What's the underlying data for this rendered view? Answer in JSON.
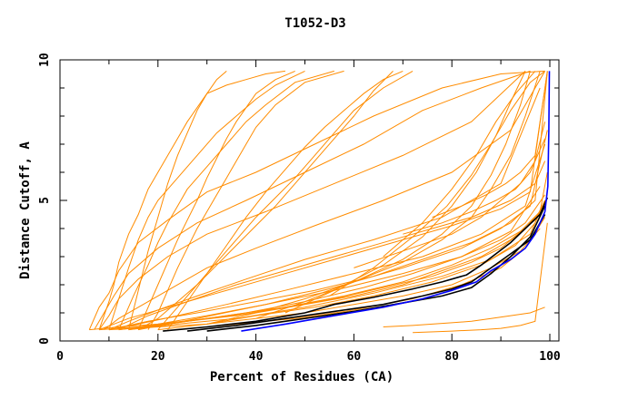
{
  "chart_data": {
    "type": "line",
    "title": "T1052-D3",
    "xlabel": "Percent of Residues (CA)",
    "ylabel": "Distance Cutoff, A",
    "xlim": [
      0,
      100
    ],
    "ylim": [
      0,
      10
    ],
    "x_ticks": [
      "0",
      "20",
      "40",
      "60",
      "80",
      "100"
    ],
    "y_ticks": [
      "0",
      "5",
      "10"
    ],
    "grid": false,
    "colors": {
      "models": "#ff8c00",
      "highlight_black": "#000000",
      "highlight_blue": "#0000ff"
    },
    "series": [
      {
        "color": "#ff8c00",
        "x": [
          6,
          8,
          10,
          12,
          16,
          22,
          30,
          40,
          52,
          64,
          78,
          90,
          99
        ],
        "y": [
          0.4,
          1.2,
          1.7,
          2.5,
          3.5,
          4.3,
          5.3,
          6.0,
          7.0,
          8.0,
          9.0,
          9.5,
          9.6
        ]
      },
      {
        "color": "#ff8c00",
        "x": [
          7,
          9,
          11,
          14,
          20,
          28,
          38,
          50,
          62,
          74,
          86,
          96
        ],
        "y": [
          0.4,
          1.0,
          1.6,
          2.4,
          3.3,
          4.2,
          5.0,
          6.0,
          7.0,
          8.2,
          9.0,
          9.6
        ]
      },
      {
        "color": "#ff8c00",
        "x": [
          8,
          10,
          12,
          16,
          22,
          30,
          42,
          56,
          70,
          84,
          95
        ],
        "y": [
          0.4,
          0.9,
          1.5,
          2.2,
          3.0,
          3.8,
          4.6,
          5.6,
          6.6,
          7.8,
          9.6
        ]
      },
      {
        "color": "#ff8c00",
        "x": [
          9,
          12,
          16,
          22,
          30,
          40,
          52,
          66,
          80,
          92,
          99
        ],
        "y": [
          0.4,
          0.8,
          1.2,
          1.8,
          2.6,
          3.3,
          4.1,
          5.0,
          6.0,
          7.5,
          9.6
        ]
      },
      {
        "color": "#ff8c00",
        "x": [
          10,
          14,
          20,
          28,
          38,
          50,
          64,
          78,
          90,
          98
        ],
        "y": [
          0.4,
          0.7,
          1.1,
          1.6,
          2.2,
          2.9,
          3.6,
          4.4,
          5.6,
          9.0
        ]
      },
      {
        "color": "#ff8c00",
        "x": [
          10,
          16,
          24,
          34,
          46,
          60,
          74,
          86,
          95,
          99
        ],
        "y": [
          0.4,
          0.6,
          0.9,
          1.3,
          1.8,
          2.4,
          3.0,
          3.8,
          4.8,
          7.0
        ]
      },
      {
        "color": "#ff8c00",
        "x": [
          12,
          20,
          30,
          42,
          56,
          70,
          82,
          92,
          98
        ],
        "y": [
          0.4,
          0.6,
          0.9,
          1.3,
          1.8,
          2.4,
          3.0,
          3.9,
          5.5
        ]
      },
      {
        "color": "#ff8c00",
        "x": [
          14,
          24,
          36,
          50,
          64,
          78,
          88,
          96,
          99
        ],
        "y": [
          0.4,
          0.6,
          0.8,
          1.2,
          1.7,
          2.3,
          2.9,
          3.8,
          5.0
        ]
      },
      {
        "color": "#ff8c00",
        "x": [
          8,
          10,
          11,
          12,
          14,
          16,
          18,
          20,
          22,
          24,
          26,
          28,
          30,
          34,
          38,
          42,
          46
        ],
        "y": [
          0.4,
          1.4,
          2.0,
          2.8,
          3.8,
          4.5,
          5.4,
          6.0,
          6.6,
          7.2,
          7.8,
          8.3,
          8.8,
          9.1,
          9.3,
          9.5,
          9.6
        ]
      },
      {
        "color": "#ff8c00",
        "x": [
          10,
          12,
          14,
          16,
          18,
          20,
          24,
          28,
          32,
          36,
          40,
          44,
          50
        ],
        "y": [
          0.4,
          1.5,
          2.6,
          3.6,
          4.4,
          5.0,
          5.8,
          6.6,
          7.4,
          8.0,
          8.6,
          9.1,
          9.6
        ]
      },
      {
        "color": "#ff8c00",
        "x": [
          12,
          15,
          18,
          20,
          22,
          24,
          26,
          30,
          34,
          38,
          42,
          48,
          56
        ],
        "y": [
          0.4,
          1.6,
          2.7,
          3.5,
          4.2,
          4.8,
          5.4,
          6.2,
          7.0,
          7.8,
          8.4,
          9.2,
          9.6
        ]
      },
      {
        "color": "#ff8c00",
        "x": [
          16,
          18,
          20,
          22,
          24,
          26,
          28,
          30,
          32,
          34,
          36,
          38,
          40,
          44,
          48
        ],
        "y": [
          0.4,
          1.2,
          2.0,
          2.8,
          3.6,
          4.3,
          5.0,
          5.8,
          6.5,
          7.2,
          7.8,
          8.3,
          8.8,
          9.3,
          9.6
        ]
      },
      {
        "color": "#ff8c00",
        "x": [
          18,
          20,
          22,
          24,
          26,
          28,
          30,
          32,
          34,
          36,
          38,
          40,
          44,
          50,
          58
        ],
        "y": [
          0.4,
          1.0,
          1.8,
          2.6,
          3.3,
          4.0,
          4.6,
          5.2,
          5.8,
          6.4,
          7.0,
          7.6,
          8.4,
          9.2,
          9.6
        ]
      },
      {
        "color": "#ff8c00",
        "x": [
          20,
          24,
          28,
          32,
          36,
          40,
          44,
          48,
          52,
          56,
          60,
          66,
          72
        ],
        "y": [
          0.4,
          1.2,
          2.0,
          2.8,
          3.6,
          4.4,
          5.1,
          5.8,
          6.6,
          7.4,
          8.2,
          9.0,
          9.6
        ]
      },
      {
        "color": "#ff8c00",
        "x": [
          22,
          26,
          30,
          34,
          38,
          42,
          46,
          50,
          54,
          58,
          62,
          66,
          70
        ],
        "y": [
          0.4,
          1.4,
          2.4,
          3.4,
          4.4,
          5.3,
          6.1,
          6.9,
          7.6,
          8.2,
          8.8,
          9.3,
          9.6
        ]
      },
      {
        "color": "#ff8c00",
        "x": [
          14,
          16,
          18,
          20,
          22,
          24,
          26,
          28,
          30,
          32,
          34
        ],
        "y": [
          0.4,
          1.8,
          3.2,
          4.4,
          5.6,
          6.6,
          7.4,
          8.2,
          8.8,
          9.3,
          9.6
        ]
      },
      {
        "color": "#ff8c00",
        "x": [
          16,
          20,
          24,
          28,
          32,
          36,
          40,
          44,
          48,
          52,
          56,
          60,
          64,
          68
        ],
        "y": [
          0.4,
          0.8,
          1.4,
          2.0,
          2.7,
          3.4,
          4.1,
          4.8,
          5.6,
          6.4,
          7.2,
          8.0,
          8.9,
          9.6
        ]
      },
      {
        "color": "#ff8c00",
        "x": [
          30,
          40,
          50,
          60,
          70,
          78,
          84,
          88,
          92,
          95,
          98
        ],
        "y": [
          0.6,
          1.0,
          1.5,
          2.1,
          2.8,
          3.6,
          4.4,
          5.4,
          6.6,
          8.0,
          9.6
        ]
      },
      {
        "color": "#ff8c00",
        "x": [
          40,
          50,
          60,
          70,
          78,
          84,
          88,
          91,
          94,
          96
        ],
        "y": [
          0.8,
          1.4,
          2.1,
          2.9,
          3.8,
          4.8,
          5.9,
          7.0,
          8.4,
          9.6
        ]
      },
      {
        "color": "#ff8c00",
        "x": [
          46,
          56,
          66,
          74,
          80,
          85,
          89,
          92,
          95
        ],
        "y": [
          1.0,
          1.8,
          2.7,
          3.7,
          4.8,
          6.0,
          7.3,
          8.5,
          9.6
        ]
      },
      {
        "color": "#ff8c00",
        "x": [
          55,
          64,
          72,
          79,
          84,
          88,
          92,
          96,
          99
        ],
        "y": [
          1.6,
          2.6,
          3.7,
          4.8,
          5.9,
          7.0,
          8.2,
          9.2,
          9.6
        ]
      },
      {
        "color": "#ff8c00",
        "x": [
          66,
          74,
          80,
          85,
          89,
          93,
          97
        ],
        "y": [
          3.0,
          4.2,
          5.4,
          6.6,
          7.8,
          8.8,
          9.6
        ]
      },
      {
        "color": "#ff8c00",
        "x": [
          6,
          12,
          20,
          30,
          40,
          50,
          60,
          70,
          78,
          86,
          92,
          97,
          99
        ],
        "y": [
          0.4,
          0.5,
          0.6,
          0.8,
          1.0,
          1.3,
          1.6,
          2.0,
          2.5,
          3.0,
          3.6,
          4.3,
          5.0
        ]
      },
      {
        "color": "#ff8c00",
        "x": [
          8,
          16,
          26,
          36,
          46,
          56,
          66,
          76,
          84,
          90,
          95,
          99
        ],
        "y": [
          0.4,
          0.5,
          0.7,
          0.9,
          1.2,
          1.5,
          1.9,
          2.3,
          2.8,
          3.3,
          4.0,
          4.8
        ]
      },
      {
        "color": "#ff8c00",
        "x": [
          10,
          20,
          30,
          40,
          50,
          60,
          70,
          80,
          88,
          94,
          98
        ],
        "y": [
          0.4,
          0.5,
          0.6,
          0.8,
          1.0,
          1.3,
          1.6,
          2.0,
          2.6,
          3.2,
          4.0
        ]
      },
      {
        "color": "#ff8c00",
        "x": [
          12,
          22,
          34,
          46,
          58,
          70,
          80,
          88,
          94,
          98,
          99.5
        ],
        "y": [
          0.4,
          0.6,
          0.9,
          1.2,
          1.6,
          2.1,
          2.7,
          3.3,
          3.9,
          4.6,
          6.0
        ]
      },
      {
        "color": "#ff8c00",
        "x": [
          14,
          26,
          38,
          50,
          62,
          72,
          82,
          90,
          95,
          99
        ],
        "y": [
          0.4,
          0.7,
          1.0,
          1.4,
          1.9,
          2.4,
          3.0,
          3.6,
          4.2,
          5.2
        ]
      },
      {
        "color": "#ff8c00",
        "x": [
          10,
          18,
          28,
          40,
          52,
          64,
          74,
          84,
          92,
          97,
          99.5
        ],
        "y": [
          0.4,
          0.7,
          1.0,
          1.4,
          1.8,
          2.3,
          2.9,
          3.5,
          4.2,
          5.0,
          9.6
        ]
      },
      {
        "color": "#ff8c00",
        "x": [
          20,
          30,
          40,
          52,
          64,
          76,
          86,
          93,
          97,
          99
        ],
        "y": [
          0.4,
          0.6,
          0.9,
          1.2,
          1.6,
          2.1,
          2.7,
          3.4,
          4.2,
          5.0
        ]
      },
      {
        "color": "#ff8c00",
        "x": [
          24,
          36,
          48,
          60,
          72,
          82,
          90,
          95,
          99
        ],
        "y": [
          0.4,
          0.6,
          0.8,
          1.1,
          1.5,
          2.0,
          2.6,
          3.3,
          4.4
        ]
      },
      {
        "color": "#ff8c00",
        "x": [
          16,
          28,
          42,
          56,
          70,
          82,
          90,
          96,
          99.5
        ],
        "y": [
          0.4,
          0.8,
          1.3,
          1.9,
          2.6,
          3.3,
          4.0,
          4.8,
          7.5
        ]
      },
      {
        "color": "#ff8c00",
        "x": [
          8,
          14,
          22,
          32,
          44,
          56,
          68,
          80,
          90,
          96,
          99.5
        ],
        "y": [
          0.4,
          0.8,
          1.2,
          1.7,
          2.3,
          2.9,
          3.5,
          4.1,
          4.7,
          5.3,
          9.6
        ]
      },
      {
        "color": "#ff8c00",
        "x": [
          12,
          18,
          26,
          36,
          48,
          60,
          72,
          84,
          92,
          97,
          99
        ],
        "y": [
          0.4,
          0.9,
          1.4,
          2.0,
          2.6,
          3.2,
          3.8,
          4.4,
          5.0,
          5.6,
          6.4
        ]
      },
      {
        "color": "#ff8c00",
        "x": [
          60,
          70,
          80,
          86,
          90,
          94,
          97,
          99
        ],
        "y": [
          2.6,
          3.2,
          3.8,
          4.4,
          5.0,
          5.6,
          6.4,
          7.8
        ]
      },
      {
        "color": "#ff8c00",
        "x": [
          70,
          78,
          84,
          89,
          93,
          96,
          99
        ],
        "y": [
          3.8,
          4.2,
          4.6,
          5.0,
          5.4,
          6.0,
          7.2
        ]
      },
      {
        "color": "#ff8c00",
        "x": [
          76,
          82,
          87,
          91,
          94,
          97,
          99.5
        ],
        "y": [
          4.4,
          4.8,
          5.2,
          5.6,
          6.0,
          6.6,
          9.6
        ]
      },
      {
        "color": "#ff8c00",
        "x": [
          66,
          72,
          76,
          80,
          84,
          88,
          92,
          96,
          99
        ],
        "y": [
          0.5,
          0.55,
          0.6,
          0.65,
          0.7,
          0.8,
          0.9,
          1.0,
          1.2
        ]
      },
      {
        "color": "#ff8c00",
        "x": [
          72,
          80,
          86,
          90,
          94,
          97,
          99.5
        ],
        "y": [
          0.3,
          0.35,
          0.4,
          0.45,
          0.55,
          0.7,
          4.2
        ]
      },
      {
        "color": "#000000",
        "x": [
          21,
          30,
          40,
          50,
          56,
          64,
          72,
          78,
          83,
          86,
          89,
          92,
          95,
          98,
          99.5
        ],
        "y": [
          0.35,
          0.5,
          0.7,
          1.0,
          1.3,
          1.55,
          1.85,
          2.1,
          2.35,
          2.7,
          3.1,
          3.5,
          4.0,
          4.5,
          5.1
        ]
      },
      {
        "color": "#000000",
        "x": [
          26,
          36,
          46,
          56,
          66,
          74,
          80,
          84,
          88,
          92,
          96,
          99
        ],
        "y": [
          0.35,
          0.55,
          0.8,
          1.05,
          1.3,
          1.6,
          1.85,
          2.1,
          2.6,
          3.1,
          3.6,
          4.5
        ]
      },
      {
        "color": "#000000",
        "x": [
          30,
          40,
          50,
          60,
          70,
          78,
          84,
          88,
          92,
          96,
          99
        ],
        "y": [
          0.35,
          0.55,
          0.8,
          1.05,
          1.35,
          1.6,
          1.9,
          2.4,
          3.0,
          3.7,
          4.8
        ]
      },
      {
        "color": "#0000ff",
        "x": [
          37,
          46,
          56,
          66,
          74,
          80,
          85,
          88,
          92,
          95,
          97,
          99,
          99.6,
          99.8,
          99.9
        ],
        "y": [
          0.35,
          0.6,
          0.9,
          1.2,
          1.5,
          1.8,
          2.1,
          2.5,
          2.9,
          3.3,
          3.8,
          4.6,
          5.5,
          7.5,
          9.6
        ]
      }
    ]
  }
}
